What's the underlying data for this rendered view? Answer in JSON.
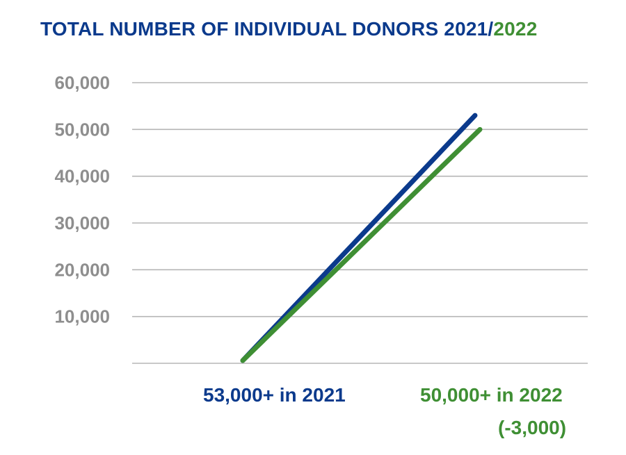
{
  "chart_data": {
    "type": "line",
    "title": {
      "part1": "TOTAL NUMBER OF INDIVIDUAL DONORS 2021/",
      "part2": "2022"
    },
    "yticks": [
      "10,000",
      "20,000",
      "30,000",
      "40,000",
      "50,000",
      "60,000"
    ],
    "ylim": [
      0,
      60000
    ],
    "grid": true,
    "series": [
      {
        "color": "#0b3a8c",
        "x": [
          0,
          1
        ],
        "values": [
          0,
          53000
        ]
      },
      {
        "color": "#3f8f34",
        "x": [
          0,
          1
        ],
        "values": [
          0,
          50000
        ]
      }
    ],
    "annotations": {
      "label_2021": "53,000+ in 2021",
      "label_2022": "50,000+ in 2022",
      "difference": "(-3,000)"
    }
  }
}
